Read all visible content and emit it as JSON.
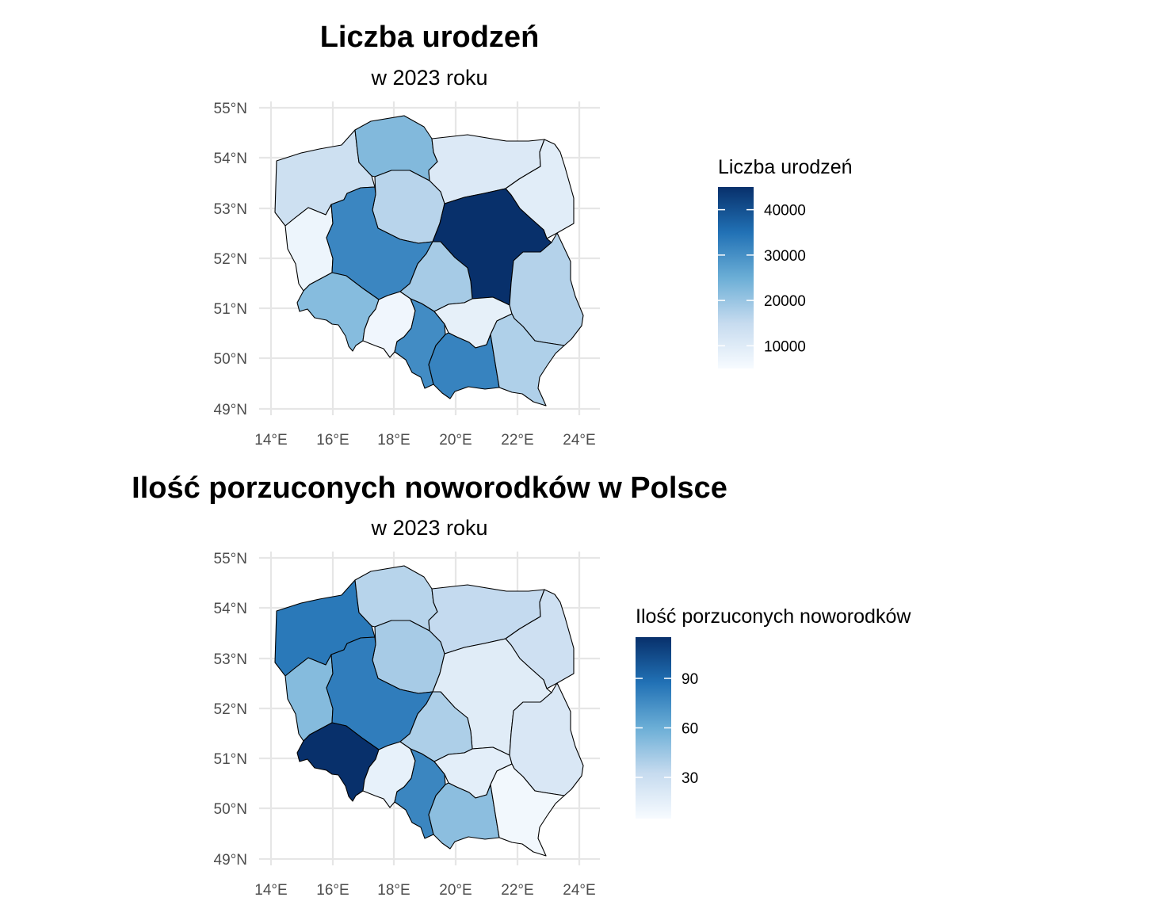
{
  "maps": [
    {
      "id": "births",
      "title": "Liczba urodzeń",
      "subtitle": "w 2023 roku",
      "legend_title": "Liczba urodzeń",
      "scale": {
        "min": 5000,
        "max": 45000,
        "ticks": [
          10000,
          20000,
          30000,
          40000
        ]
      },
      "lat_ticks": [
        "55°N",
        "54°N",
        "53°N",
        "52°N",
        "51°N",
        "50°N",
        "49°N"
      ],
      "lon_ticks": [
        "14°E",
        "16°E",
        "18°E",
        "20°E",
        "22°E",
        "24°E"
      ],
      "regions": [
        {
          "name": "zachodniopomorskie",
          "value": 13500
        },
        {
          "name": "pomorskie",
          "value": 22500
        },
        {
          "name": "warmińsko-mazurskie",
          "value": 10500
        },
        {
          "name": "podlaskie",
          "value": 9500
        },
        {
          "name": "lubuskie",
          "value": 7000
        },
        {
          "name": "kujawsko-pomorskie",
          "value": 16500
        },
        {
          "name": "wielkopolskie",
          "value": 31500
        },
        {
          "name": "mazowieckie",
          "value": 45000
        },
        {
          "name": "łódzkie",
          "value": 18500
        },
        {
          "name": "dolnośląskie",
          "value": 22000
        },
        {
          "name": "opolskie",
          "value": 6500
        },
        {
          "name": "śląskie",
          "value": 30500
        },
        {
          "name": "świętokrzyskie",
          "value": 8500
        },
        {
          "name": "lubelskie",
          "value": 17000
        },
        {
          "name": "małopolskie",
          "value": 32000
        },
        {
          "name": "podkarpackie",
          "value": 17500
        }
      ]
    },
    {
      "id": "abandoned",
      "title": "Ilość porzuconych noworodków w Polsce",
      "subtitle": "w 2023 roku",
      "legend_title": "Ilość porzuconych noworodków",
      "scale": {
        "min": 5,
        "max": 115,
        "ticks": [
          30,
          60,
          90
        ]
      },
      "lat_ticks": [
        "55°N",
        "54°N",
        "53°N",
        "52°N",
        "51°N",
        "50°N",
        "49°N"
      ],
      "lon_ticks": [
        "14°E",
        "16°E",
        "18°E",
        "20°E",
        "22°E",
        "24°E"
      ],
      "regions": [
        {
          "name": "zachodniopomorskie",
          "value": 84
        },
        {
          "name": "pomorskie",
          "value": 37
        },
        {
          "name": "warmińsko-mazurskie",
          "value": 33
        },
        {
          "name": "podlaskie",
          "value": 28
        },
        {
          "name": "lubuskie",
          "value": 52
        },
        {
          "name": "kujawsko-pomorskie",
          "value": 42
        },
        {
          "name": "wielkopolskie",
          "value": 82
        },
        {
          "name": "mazowieckie",
          "value": 18
        },
        {
          "name": "łódzkie",
          "value": 40
        },
        {
          "name": "dolnośląskie",
          "value": 115
        },
        {
          "name": "opolskie",
          "value": 14
        },
        {
          "name": "śląskie",
          "value": 78
        },
        {
          "name": "świętokrzyskie",
          "value": 16
        },
        {
          "name": "lubelskie",
          "value": 22
        },
        {
          "name": "małopolskie",
          "value": 50
        },
        {
          "name": "podkarpackie",
          "value": 8
        }
      ]
    }
  ]
}
